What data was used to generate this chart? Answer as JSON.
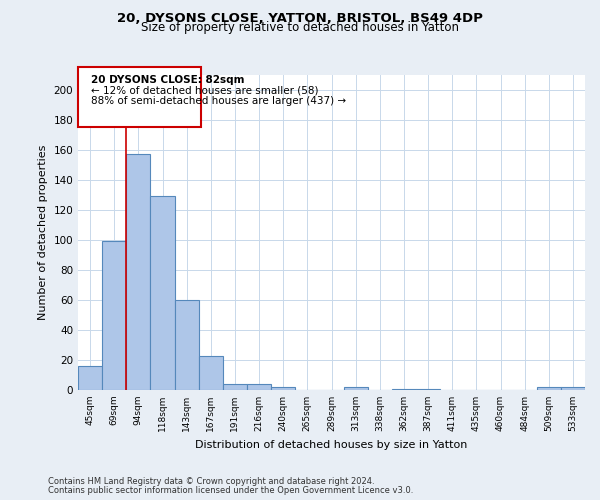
{
  "title_line1": "20, DYSONS CLOSE, YATTON, BRISTOL, BS49 4DP",
  "title_line2": "Size of property relative to detached houses in Yatton",
  "xlabel": "Distribution of detached houses by size in Yatton",
  "ylabel": "Number of detached properties",
  "categories": [
    "45sqm",
    "69sqm",
    "94sqm",
    "118sqm",
    "143sqm",
    "167sqm",
    "191sqm",
    "216sqm",
    "240sqm",
    "265sqm",
    "289sqm",
    "313sqm",
    "338sqm",
    "362sqm",
    "387sqm",
    "411sqm",
    "435sqm",
    "460sqm",
    "484sqm",
    "509sqm",
    "533sqm"
  ],
  "values": [
    16,
    99,
    157,
    129,
    60,
    23,
    4,
    4,
    2,
    0,
    0,
    2,
    0,
    1,
    1,
    0,
    0,
    0,
    0,
    2,
    2
  ],
  "bar_color": "#aec6e8",
  "bar_edge_color": "#5588bb",
  "vline_x": 1.5,
  "vline_color": "#cc0000",
  "box_text_line1": "20 DYSONS CLOSE: 82sqm",
  "box_text_line2": "← 12% of detached houses are smaller (58)",
  "box_text_line3": "88% of semi-detached houses are larger (437) →",
  "box_color": "#cc0000",
  "ylim": [
    0,
    210
  ],
  "yticks": [
    0,
    20,
    40,
    60,
    80,
    100,
    120,
    140,
    160,
    180,
    200
  ],
  "footer_line1": "Contains HM Land Registry data © Crown copyright and database right 2024.",
  "footer_line2": "Contains public sector information licensed under the Open Government Licence v3.0.",
  "background_color": "#e8eef5",
  "plot_background": "#ffffff",
  "grid_color": "#c8d8ea"
}
